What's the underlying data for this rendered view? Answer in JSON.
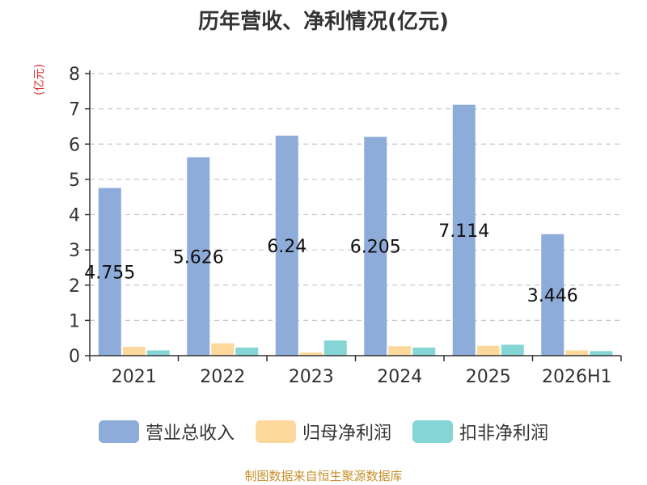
{
  "header": {
    "title": "历年营收、净利情况(亿元)",
    "unit": "(亿元)"
  },
  "footer": {
    "source": "制图数据来自恒生聚源数据库"
  },
  "colors": {
    "revenue": "#8dacd9",
    "net_profit": "#fdd89c",
    "deducted_profit": "#85d5d6",
    "grid": "#c8c8c8",
    "axis": "#333333"
  },
  "chart_data": {
    "type": "bar",
    "title": "历年营收、净利情况(亿元)",
    "ylabel": "(亿元)",
    "xlabel": "",
    "categories": [
      "2021",
      "2022",
      "2023",
      "2024",
      "2025",
      "2026H1"
    ],
    "ylim": [
      0,
      8
    ],
    "yticks": [
      "0",
      "1",
      "2",
      "3",
      "4",
      "5",
      "6",
      "7",
      "8"
    ],
    "grid": true,
    "legend_position": "bottom",
    "series": [
      {
        "name": "营业总收入",
        "values": [
          4.755,
          5.626,
          6.24,
          6.205,
          7.114,
          3.446
        ],
        "labels": [
          "4.755",
          "5.626",
          "6.24",
          "6.205",
          "7.114",
          "3.446"
        ]
      },
      {
        "name": "归母净利润",
        "values": [
          0.25,
          0.35,
          0.09,
          0.27,
          0.28,
          0.15
        ]
      },
      {
        "name": "扣非净利润",
        "values": [
          0.15,
          0.23,
          0.43,
          0.23,
          0.31,
          0.13
        ]
      }
    ]
  }
}
